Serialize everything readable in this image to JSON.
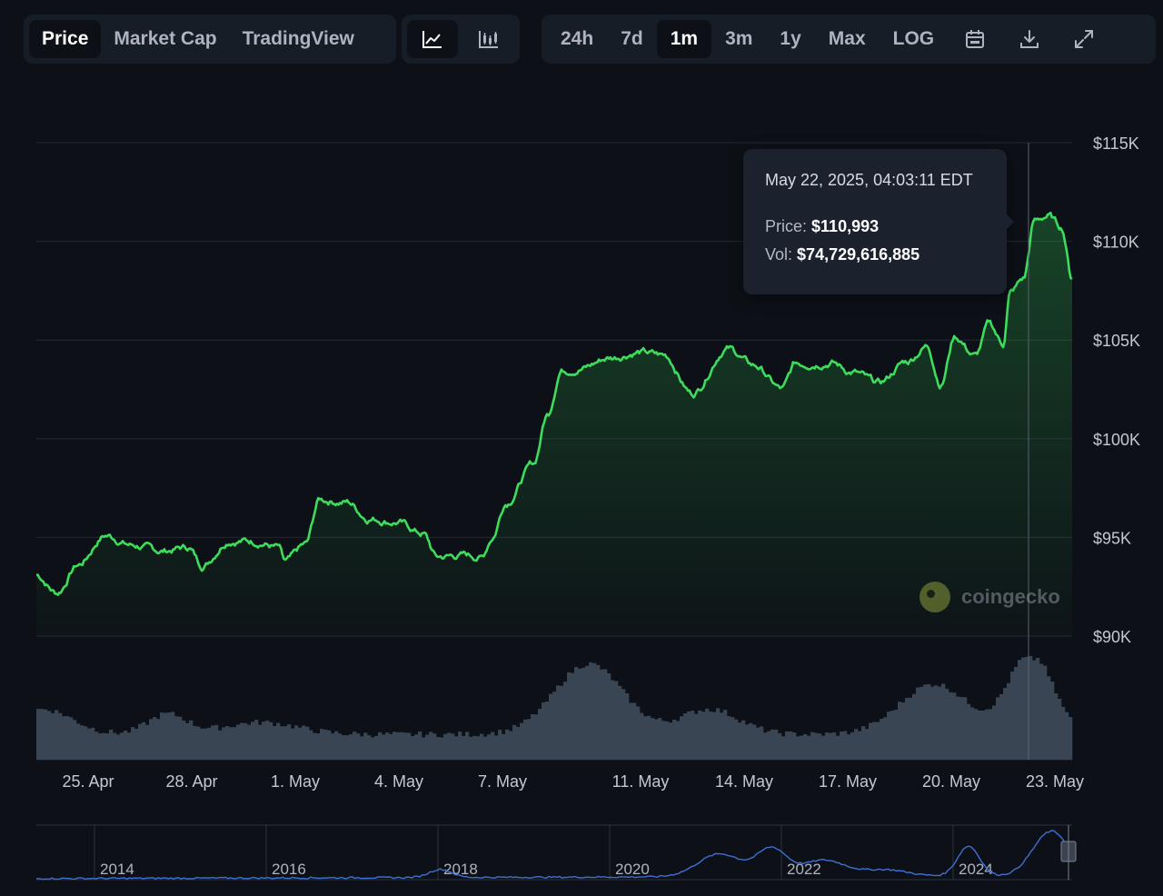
{
  "toolbar": {
    "views": [
      {
        "label": "Price",
        "active": true
      },
      {
        "label": "Market Cap",
        "active": false
      },
      {
        "label": "TradingView",
        "active": false
      }
    ],
    "chart_types": [
      {
        "icon": "line-chart-icon",
        "active": true
      },
      {
        "icon": "candlestick-chart-icon",
        "active": false
      }
    ],
    "ranges": [
      {
        "label": "24h",
        "active": false
      },
      {
        "label": "7d",
        "active": false
      },
      {
        "label": "1m",
        "active": true
      },
      {
        "label": "3m",
        "active": false
      },
      {
        "label": "1y",
        "active": false
      },
      {
        "label": "Max",
        "active": false
      },
      {
        "label": "LOG",
        "active": false
      }
    ],
    "actions": [
      {
        "icon": "calendar-icon"
      },
      {
        "icon": "download-icon"
      },
      {
        "icon": "expand-icon"
      }
    ]
  },
  "tooltip": {
    "date": "May 22, 2025, 04:03:11 EDT",
    "price_label": "Price:",
    "price_value": "$110,993",
    "vol_label": "Vol:",
    "vol_value": "$74,729,616,885"
  },
  "watermark": "coingecko",
  "colors": {
    "line": "#3ddc5c",
    "volume": "#3a4553",
    "grid": "#222a35",
    "navigator_line": "#3d6fd6"
  },
  "chart_data": {
    "type": "line",
    "ylim": [
      90000,
      115000
    ],
    "y_ticks": [
      "$115K",
      "$110K",
      "$105K",
      "$100K",
      "$95K",
      "$90K"
    ],
    "y_tick_values": [
      115000,
      110000,
      105000,
      100000,
      95000,
      90000
    ],
    "x_tick_labels": [
      "25. Apr",
      "28. Apr",
      "1. May",
      "4. May",
      "7. May",
      "11. May",
      "14. May",
      "17. May",
      "20. May",
      "23. May"
    ],
    "x_tick_days": [
      1.5,
      4.5,
      7.5,
      10.5,
      13.5,
      17.5,
      20.5,
      23.5,
      26.5,
      29.5
    ],
    "x_range_days": [
      0,
      30
    ],
    "price_days": [
      0,
      0.5,
      1,
      1.5,
      2,
      2.5,
      3,
      3.5,
      4,
      4.5,
      5,
      5.5,
      6,
      6.5,
      7,
      7.5,
      8,
      8.5,
      9,
      9.5,
      10,
      10.5,
      11,
      11.5,
      12,
      12.5,
      13,
      13.5,
      14,
      14.5,
      15,
      15.5,
      16,
      16.5,
      17,
      17.5,
      18,
      18.5,
      19,
      19.5,
      20,
      20.5,
      21,
      21.5,
      22,
      22.5,
      23,
      23.5,
      24,
      24.5,
      25,
      25.5,
      26,
      26.5,
      27,
      27.5,
      28,
      28.5,
      29,
      29.5,
      30
    ],
    "price_values": [
      93100,
      92200,
      93600,
      95100,
      94600,
      94300,
      94500,
      93600,
      94900,
      94800,
      94500,
      93700,
      94600,
      96900,
      96800,
      96000,
      95800,
      95200,
      94000,
      94100,
      94000,
      95000,
      96800,
      98700,
      101200,
      103500,
      103600,
      104100,
      104400,
      104200,
      102300,
      104600,
      103700,
      102500,
      103800,
      103900,
      103400,
      102800,
      103900,
      104700,
      102800,
      105200,
      104200,
      105800,
      104800,
      107400,
      108100,
      111000,
      111300,
      110700,
      108100
    ],
    "price_value_days": [
      0,
      0.6,
      1.2,
      2,
      2.8,
      3.6,
      4.4,
      4.8,
      5.6,
      6.4,
      7,
      7.2,
      7.8,
      8.2,
      9,
      9.6,
      10.4,
      11.2,
      11.6,
      12.4,
      12.9,
      13.2,
      13.6,
      14.4,
      14.8,
      15.2,
      15.8,
      16.6,
      17.4,
      18.2,
      19,
      20,
      20.8,
      21.6,
      22,
      23,
      23.6,
      24.4,
      25.2,
      25.8,
      26.2,
      26.6,
      27.2,
      27.6,
      28,
      28.2,
      28.6,
      28.9,
      29.3,
      29.7,
      30
    ],
    "volume_note": "volume bars shown without axis",
    "navigator_years": [
      "2014",
      "2016",
      "2018",
      "2020",
      "2022",
      "2024"
    ]
  }
}
